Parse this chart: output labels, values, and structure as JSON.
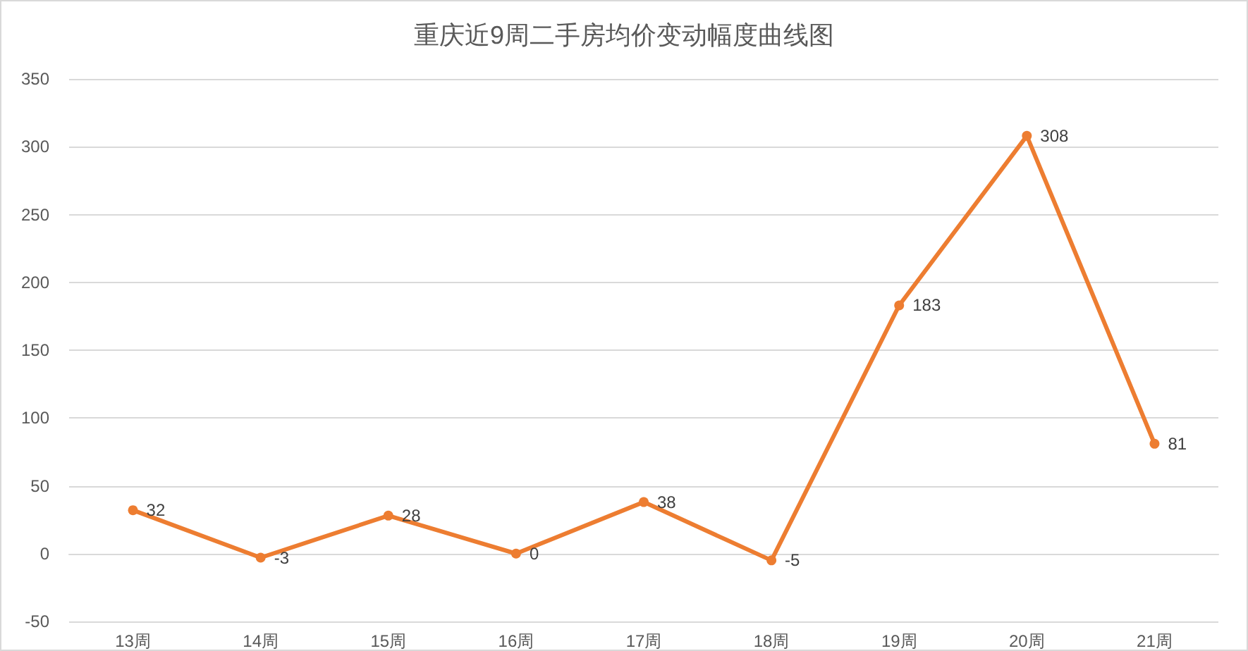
{
  "chart_data": {
    "type": "line",
    "title": "重庆近9周二手房均价变动幅度曲线图",
    "categories": [
      "13周",
      "14周",
      "15周",
      "16周",
      "17周",
      "18周",
      "19周",
      "20周",
      "21周"
    ],
    "series": [
      {
        "color": "#ed7d31",
        "values": [
          32,
          -3,
          28,
          0,
          38,
          -5,
          183,
          308,
          81
        ]
      }
    ],
    "ylim": [
      -50,
      350
    ],
    "yticks": [
      -50,
      0,
      50,
      100,
      150,
      200,
      250,
      300,
      350
    ],
    "grid": "y",
    "marker": "circle",
    "line_style": "solid",
    "data_labels": true
  }
}
